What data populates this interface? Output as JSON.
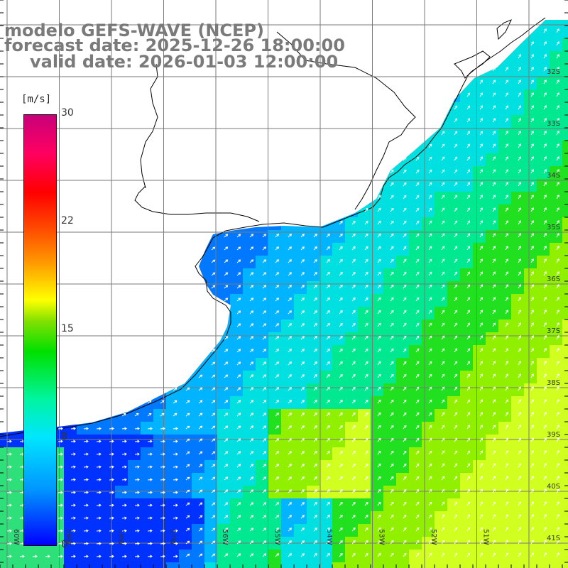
{
  "title": {
    "line1": "modelo GEFS-WAVE (NCEP)",
    "line2": "forecast date: 2025-12-26 18:00:00",
    "line3": "valid date: 2026-01-03 12:00:00"
  },
  "colorbar": {
    "unit": "[m/s]",
    "ticks": [
      "30",
      "22",
      "15",
      "8",
      "0"
    ],
    "stops": [
      "#0000ff",
      "#0096ff",
      "#00e5ff",
      "#00e000",
      "#ffff00",
      "#ff5000",
      "#ff0000",
      "#c8007a"
    ]
  },
  "map": {
    "lat_labels": [
      "32S",
      "33S",
      "34S",
      "35S",
      "36S",
      "37S",
      "38S",
      "39S",
      "40S",
      "41S"
    ],
    "lon_labels": [
      "60W",
      "59W",
      "58W",
      "57W",
      "56W",
      "55W",
      "54W",
      "53W",
      "52W",
      "51W"
    ],
    "land_color": "#ffffff",
    "coast_color": "#000000",
    "grid_color": "#808080",
    "arrow_color": "#ffffff",
    "background_field_note_colors": {
      "weak": "#0064ff",
      "moderate": "#00c8ff",
      "strong": "#00e000",
      "stronger": "#b4ff00"
    }
  }
}
